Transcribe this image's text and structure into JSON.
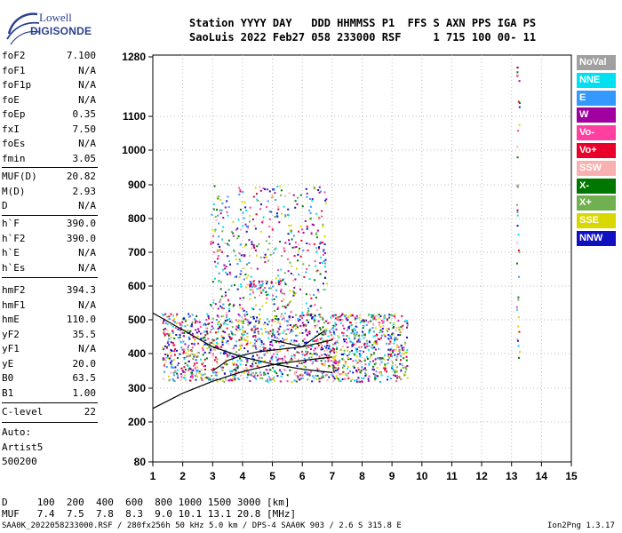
{
  "logo": {
    "line1": "Lowell",
    "line2": "DIGISONDE"
  },
  "header": {
    "labels_line": "Station YYYY DAY   DDD HHMMSS P1  FFS S AXN PPS IGA PS",
    "values_line": "SaoLuis 2022 Feb27 058 233000 RSF     1 715 100 00- 11"
  },
  "params_group1": [
    {
      "k": "foF2",
      "v": "7.100"
    },
    {
      "k": "foF1",
      "v": "N/A"
    },
    {
      "k": "foF1p",
      "v": "N/A"
    },
    {
      "k": "foE",
      "v": "N/A"
    },
    {
      "k": "foEp",
      "v": "0.35"
    },
    {
      "k": "fxI",
      "v": "7.50"
    },
    {
      "k": "foEs",
      "v": "N/A"
    },
    {
      "k": "fmin",
      "v": "3.05"
    }
  ],
  "params_group2": [
    {
      "k": "MUF(D)",
      "v": "20.82"
    },
    {
      "k": "M(D)",
      "v": "2.93"
    },
    {
      "k": "D",
      "v": "N/A"
    }
  ],
  "params_group3": [
    {
      "k": "h`F",
      "v": "390.0"
    },
    {
      "k": "h`F2",
      "v": "390.0"
    },
    {
      "k": "h`E",
      "v": "N/A"
    },
    {
      "k": "h`Es",
      "v": "N/A"
    }
  ],
  "params_group4": [
    {
      "k": "hmF2",
      "v": "394.3"
    },
    {
      "k": "hmF1",
      "v": "N/A"
    },
    {
      "k": "hmE",
      "v": "110.0"
    },
    {
      "k": "yF2",
      "v": "35.5"
    },
    {
      "k": "yF1",
      "v": "N/A"
    },
    {
      "k": "yE",
      "v": "20.0"
    },
    {
      "k": "B0",
      "v": "63.5"
    },
    {
      "k": "B1",
      "v": "1.00"
    }
  ],
  "params_group5": [
    {
      "k": "C-level",
      "v": "22"
    }
  ],
  "auto_lines": [
    "Auto:",
    "Artist5",
    "500200"
  ],
  "d_muf_table": {
    "d_line": "D     100  200  400  600  800 1000 1500 3000 [km]",
    "muf_line": "MUF   7.4  7.5  7.8  8.3  9.0 10.1 13.1 20.8 [MHz]"
  },
  "footer": {
    "left": "SAA0K_2022058233000.RSF / 280fx256h 50 kHz 5.0 km / DPS-4 SAA0K 903 / 2.6 S 315.8 E",
    "right": "Ion2Png 1.3.17"
  },
  "legend": [
    {
      "label": "NoVal",
      "color": "#a0a0a0"
    },
    {
      "label": "NNE",
      "color": "#00e0f0"
    },
    {
      "label": "E",
      "color": "#3399ff"
    },
    {
      "label": "W",
      "color": "#a000a0"
    },
    {
      "label": "Vo-",
      "color": "#ff40a0"
    },
    {
      "label": "Vo+",
      "color": "#e8002a"
    },
    {
      "label": "SSW",
      "color": "#f8b0b0"
    },
    {
      "label": "X-",
      "color": "#007700"
    },
    {
      "label": "X+",
      "color": "#70b050"
    },
    {
      "label": "SSE",
      "color": "#d8d800"
    },
    {
      "label": "NNW",
      "color": "#1010c0"
    }
  ],
  "chart_data": {
    "type": "scatter",
    "x_axis": {
      "label": "",
      "min": 1,
      "max": 15,
      "ticks": [
        1,
        2,
        3,
        4,
        5,
        6,
        7,
        8,
        9,
        10,
        11,
        12,
        13,
        14,
        15
      ]
    },
    "y_axis": {
      "label": "",
      "scale": "custom-nonlinear",
      "ticks": [
        80,
        200,
        300,
        400,
        500,
        600,
        700,
        800,
        900,
        1000,
        1100,
        1280
      ]
    },
    "grid": "dotted",
    "legend_position": "right",
    "traces": [
      {
        "name": "O-trace virtual height",
        "points": [
          [
            3.0,
            350
          ],
          [
            3.5,
            380
          ],
          [
            4.0,
            395
          ],
          [
            4.5,
            405
          ],
          [
            5.0,
            410
          ],
          [
            5.5,
            415
          ],
          [
            6.0,
            420
          ],
          [
            6.5,
            430
          ],
          [
            7.0,
            440
          ]
        ]
      },
      {
        "name": "O-trace upper branch",
        "points": [
          [
            5.0,
            440
          ],
          [
            5.5,
            430
          ],
          [
            6.0,
            420
          ],
          [
            6.3,
            440
          ],
          [
            6.7,
            465
          ]
        ]
      },
      {
        "name": "profile curve 1",
        "points": [
          [
            1.0,
            520
          ],
          [
            2.0,
            470
          ],
          [
            3.0,
            420
          ],
          [
            4.0,
            390
          ],
          [
            5.0,
            370
          ],
          [
            6.0,
            355
          ],
          [
            7.0,
            345
          ]
        ]
      },
      {
        "name": "profile curve 2",
        "points": [
          [
            1.0,
            240
          ],
          [
            2.0,
            285
          ],
          [
            3.0,
            320
          ],
          [
            4.0,
            348
          ],
          [
            5.0,
            368
          ],
          [
            6.0,
            380
          ],
          [
            7.0,
            390
          ]
        ]
      }
    ],
    "echo_clusters": [
      {
        "name": "main-F-echoes",
        "fmin": 1.3,
        "fmax": 9.5,
        "hmin": 320,
        "hmax": 520,
        "density": 0.8
      },
      {
        "name": "spread-F",
        "fmin": 2.9,
        "fmax": 6.8,
        "hmin": 520,
        "hmax": 900,
        "density": 0.25
      },
      {
        "name": "upper-band",
        "fmin": 4.2,
        "fmax": 5.8,
        "hmin": 570,
        "hmax": 620,
        "density": 0.5
      },
      {
        "name": "interference-13.2MHz",
        "fmin": 13.15,
        "fmax": 13.25,
        "hmin": 380,
        "hmax": 1280,
        "density": 0.35
      }
    ]
  }
}
